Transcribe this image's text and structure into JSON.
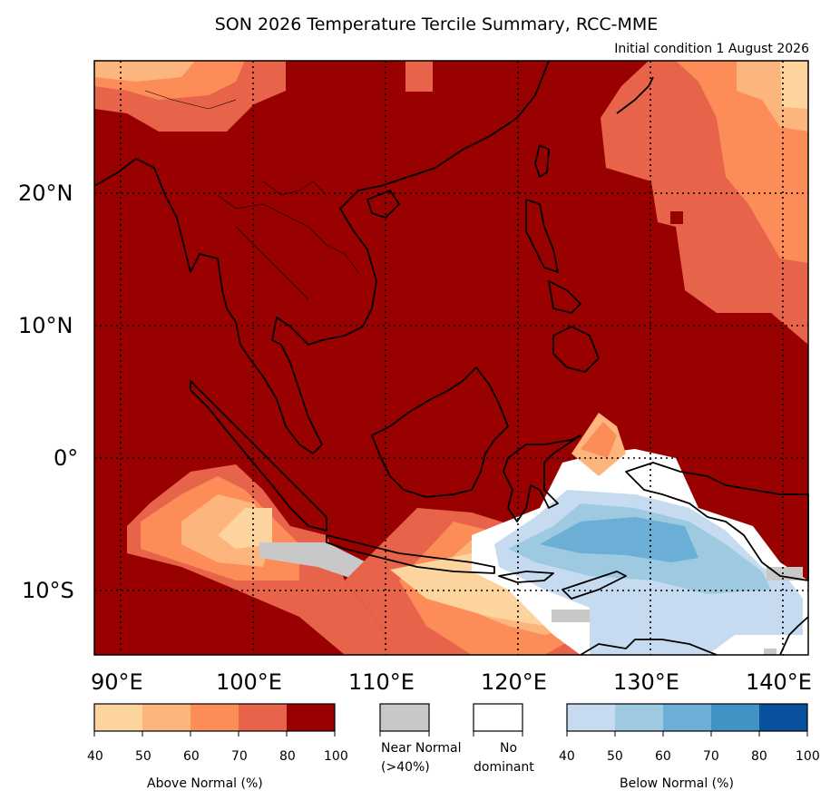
{
  "title": "SON 2026 Temperature Tercile Summary, RCC-MME",
  "subtitle": "Initial condition 1 August 2026",
  "axes": {
    "lat_ticks": [
      "20°N",
      "10°N",
      "0°",
      "10°S"
    ],
    "lon_ticks": [
      "90°E",
      "100°E",
      "110°E",
      "120°E",
      "130°E",
      "140°E"
    ]
  },
  "colors": {
    "above": [
      "#fdd49e",
      "#fdb57e",
      "#fc8d59",
      "#e7634a",
      "#990000"
    ],
    "near_normal": "#c8c8c8",
    "no_dominant": "#ffffff",
    "below": [
      "#c6dbef",
      "#9ecae1",
      "#6baed6",
      "#4292c6",
      "#08519c"
    ]
  },
  "legend": {
    "above": {
      "label": "Above Normal (%)",
      "ticks": [
        "40",
        "50",
        "60",
        "70",
        "80",
        "100"
      ]
    },
    "near": {
      "label_line1": "Near Normal",
      "label_line2": "(>40%)"
    },
    "nodom": {
      "label_line1": "No",
      "label_line2": "dominant"
    },
    "below": {
      "label": "Below Normal (%)",
      "ticks": [
        "40",
        "50",
        "60",
        "70",
        "80",
        "100"
      ]
    }
  }
}
